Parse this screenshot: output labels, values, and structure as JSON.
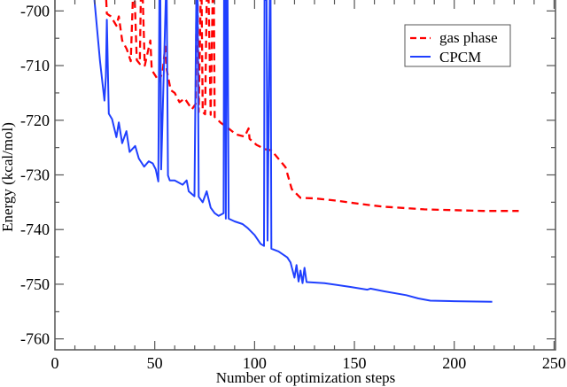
{
  "chart_data": {
    "type": "line",
    "title": "",
    "xlabel": "Number of optimization steps",
    "ylabel": "Energy (kcal/mol)",
    "xlim": [
      0,
      250.7
    ],
    "ylim": [
      -762,
      -698
    ],
    "xticks": [
      0,
      50,
      100,
      150,
      200,
      250
    ],
    "yticks": [
      -760,
      -750,
      -740,
      -730,
      -720,
      -710,
      -700
    ],
    "xtick_labels": [
      "0",
      "50",
      "100",
      "150",
      "200",
      "250"
    ],
    "ytick_labels": [
      "-760",
      "-750",
      "-740",
      "-730",
      "-720",
      "-710",
      "-700"
    ],
    "grid": false,
    "legend_position": "top-right",
    "series": [
      {
        "name": "gas phase",
        "color": "#ff0000",
        "style": "dashed",
        "points": [
          [
            25.7,
            -698
          ],
          [
            26,
            -700.5
          ],
          [
            28,
            -701
          ],
          [
            30.8,
            -702.7
          ],
          [
            32,
            -701
          ],
          [
            33.7,
            -705.4
          ],
          [
            36,
            -707
          ],
          [
            38,
            -709.2
          ],
          [
            39,
            -698
          ],
          [
            40,
            -698
          ],
          [
            41,
            -709
          ],
          [
            42.5,
            -709.7
          ],
          [
            43,
            -698
          ],
          [
            44,
            -698
          ],
          [
            45,
            -710
          ],
          [
            47.8,
            -705.4
          ],
          [
            48.5,
            -710.8
          ],
          [
            52.2,
            -712.9
          ],
          [
            54,
            -711
          ],
          [
            55.2,
            -706.5
          ],
          [
            56,
            -710.8
          ],
          [
            58,
            -714.5
          ],
          [
            60,
            -715
          ],
          [
            62.4,
            -716.7
          ],
          [
            65,
            -716
          ],
          [
            68.6,
            -718
          ],
          [
            70.5,
            -717
          ],
          [
            70.9,
            -698
          ],
          [
            71.5,
            -698
          ],
          [
            72,
            -718.5
          ],
          [
            73,
            -698
          ],
          [
            73.5,
            -698
          ],
          [
            74,
            -718.5
          ],
          [
            75.2,
            -718.9
          ],
          [
            76,
            -698
          ],
          [
            77,
            -698
          ],
          [
            78,
            -719
          ],
          [
            79,
            -698
          ],
          [
            79.6,
            -698
          ],
          [
            80,
            -719.4
          ],
          [
            83.2,
            -720.5
          ],
          [
            86,
            -721.2
          ],
          [
            90.7,
            -722.6
          ],
          [
            95,
            -723
          ],
          [
            97,
            -721.5
          ],
          [
            97.5,
            -723.4
          ],
          [
            101,
            -724.5
          ],
          [
            105.3,
            -725.3
          ],
          [
            108.4,
            -725.5
          ],
          [
            112.8,
            -727.4
          ],
          [
            115.5,
            -728.6
          ],
          [
            118.6,
            -732.6
          ],
          [
            123,
            -734.2
          ],
          [
            130,
            -734.3
          ],
          [
            140.7,
            -734.7
          ],
          [
            152.6,
            -735.3
          ],
          [
            164,
            -735.8
          ],
          [
            185,
            -736.3
          ],
          [
            214.6,
            -736.6
          ],
          [
            232.3,
            -736.6
          ]
        ]
      },
      {
        "name": "CPCM",
        "color": "#2040ff",
        "style": "solid",
        "points": [
          [
            19.8,
            -698
          ],
          [
            22.6,
            -709.2
          ],
          [
            24.8,
            -716.4
          ],
          [
            25.5,
            -712
          ],
          [
            26,
            -701.6
          ],
          [
            27,
            -718.8
          ],
          [
            28.6,
            -719.8
          ],
          [
            30.8,
            -723.1
          ],
          [
            32,
            -720.4
          ],
          [
            33.7,
            -724.2
          ],
          [
            35.8,
            -722
          ],
          [
            37.4,
            -725.8
          ],
          [
            40.2,
            -724.7
          ],
          [
            42,
            -727
          ],
          [
            44.7,
            -728.5
          ],
          [
            47,
            -727.5
          ],
          [
            49,
            -727.9
          ],
          [
            50.5,
            -729
          ],
          [
            51.8,
            -731.2
          ],
          [
            52.3,
            -698
          ],
          [
            52.8,
            -698
          ],
          [
            53.2,
            -729
          ],
          [
            55.5,
            -698
          ],
          [
            56,
            -698
          ],
          [
            56.6,
            -730.1
          ],
          [
            57.5,
            -731
          ],
          [
            60,
            -731
          ],
          [
            64,
            -731.8
          ],
          [
            66,
            -731
          ],
          [
            67,
            -733
          ],
          [
            69.9,
            -733.9
          ],
          [
            70.8,
            -698
          ],
          [
            71.5,
            -698
          ],
          [
            72,
            -734
          ],
          [
            74,
            -735
          ],
          [
            76,
            -733
          ],
          [
            78,
            -736
          ],
          [
            80,
            -737
          ],
          [
            82,
            -737.5
          ],
          [
            84.5,
            -737
          ],
          [
            84.7,
            -698
          ],
          [
            85.3,
            -698
          ],
          [
            85.6,
            -738
          ],
          [
            86,
            -698
          ],
          [
            86.5,
            -698
          ],
          [
            87,
            -738
          ],
          [
            90,
            -738.5
          ],
          [
            94,
            -739
          ],
          [
            96.5,
            -739.7
          ],
          [
            100,
            -741
          ],
          [
            103,
            -742.6
          ],
          [
            104.7,
            -743
          ],
          [
            105,
            -698
          ],
          [
            106,
            -698
          ],
          [
            106.5,
            -742
          ],
          [
            107.6,
            -698
          ],
          [
            108,
            -698
          ],
          [
            108.4,
            -743.5
          ],
          [
            112,
            -744
          ],
          [
            116.4,
            -745.1
          ],
          [
            118,
            -746
          ],
          [
            120,
            -748.8
          ],
          [
            121,
            -746.5
          ],
          [
            122,
            -749.5
          ],
          [
            123,
            -747.5
          ],
          [
            124,
            -749.8
          ],
          [
            125,
            -747
          ],
          [
            126,
            -749.6
          ],
          [
            135,
            -749.8
          ],
          [
            148,
            -750.5
          ],
          [
            156.5,
            -751
          ],
          [
            158,
            -750.8
          ],
          [
            165,
            -751.3
          ],
          [
            176,
            -752
          ],
          [
            182,
            -752.6
          ],
          [
            188,
            -753
          ],
          [
            200,
            -753.1
          ],
          [
            219,
            -753.2
          ]
        ]
      }
    ]
  }
}
